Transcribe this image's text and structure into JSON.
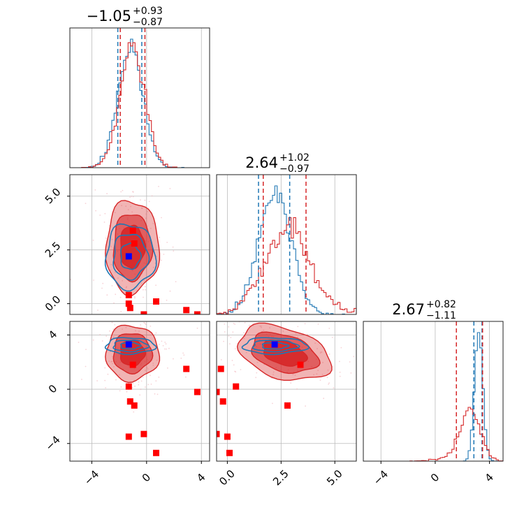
{
  "chart_data": {
    "type": "corner",
    "parameters": 3,
    "titles": [
      {
        "value": "−1.05",
        "plus": "+0.93",
        "minus": "−0.87"
      },
      {
        "value": "2.64",
        "plus": "+1.02",
        "minus": "−0.97"
      },
      {
        "value": "2.67",
        "plus": "+0.82",
        "minus": "−1.11"
      }
    ],
    "axis_ranges": [
      [
        -5.6,
        4.6
      ],
      [
        -0.5,
        6.0
      ],
      [
        -5.3,
        5.0
      ]
    ],
    "ticks": {
      "p0": {
        "values": [
          -4,
          0,
          4
        ],
        "labels": [
          "−4",
          "0",
          "4"
        ]
      },
      "p1": {
        "values": [
          0.0,
          2.5,
          5.0
        ],
        "labels": [
          "0.0",
          "2.5",
          "5.0"
        ]
      },
      "p2": {
        "values": [
          -4,
          0,
          4
        ],
        "labels": [
          "−4",
          "0",
          "4"
        ]
      }
    },
    "grid": true,
    "colors": {
      "red": "#d62728",
      "blue": "#1f77b4",
      "marker_red": "#ff0000",
      "marker_blue": "#0000ff"
    },
    "series": [
      {
        "color": "#d62728",
        "quantiles": [
          [
            -1.92,
            -0.12
          ],
          [
            1.67,
            3.66
          ],
          [
            1.56,
            3.49
          ]
        ],
        "medians": [
          -1.05,
          2.64,
          2.67
        ],
        "sigmas": [
          0.9,
          1.0,
          0.95
        ],
        "correlations": {
          "p1p0": 0.0,
          "p2p0": 0.0,
          "p2p1": -0.35
        },
        "contour_center": {
          "p0": -1.05,
          "p1": 2.64,
          "p2": 2.67
        }
      },
      {
        "color": "#1f77b4",
        "quantiles": [
          [
            -2.1,
            -0.35
          ],
          [
            1.45,
            2.9
          ],
          [
            2.85,
            3.45
          ]
        ],
        "medians": [
          -1.2,
          2.2,
          3.2
        ],
        "sigmas": [
          0.9,
          0.75,
          0.3
        ],
        "correlations": {
          "p1p0": 0.0,
          "p2p0": 0.0,
          "p2p1": 0.0
        },
        "contour_center": {
          "p0": -1.2,
          "p1": 2.2,
          "p2": 3.2
        }
      }
    ],
    "marker_blue": {
      "p0": -1.3,
      "p1": 2.2,
      "p2": 3.3
    },
    "markers_red": [
      {
        "p0": -1.3,
        "p1": 0.4,
        "p2": 0.2
      },
      {
        "p0": -1.0,
        "p1": 3.4,
        "p2": 1.8
      },
      {
        "p0": -0.9,
        "p1": 2.8,
        "p2": -1.2
      },
      {
        "p0": -1.2,
        "p1": -0.2,
        "p2": -0.9
      },
      {
        "p0": -1.3,
        "p1": 0.0,
        "p2": -3.5
      },
      {
        "p0": -0.2,
        "p1": -0.5,
        "p2": -3.3
      },
      {
        "p0": 0.7,
        "p1": 0.1,
        "p2": -4.7
      },
      {
        "p0": 2.9,
        "p1": -0.3,
        "p2": 1.5
      },
      {
        "p0": 3.7,
        "p1": -0.5,
        "p2": -0.2
      }
    ]
  }
}
